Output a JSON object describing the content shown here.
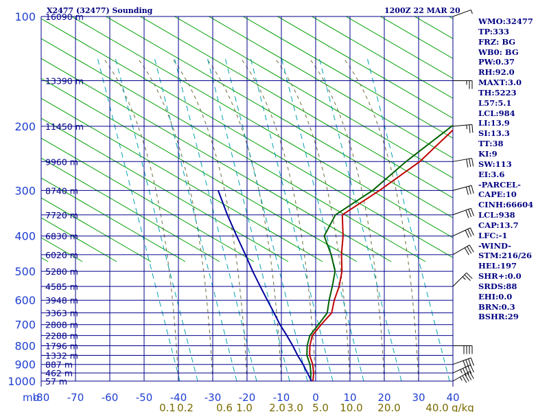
{
  "header": {
    "station": "X2477 (32477) Sounding",
    "datetime": "1200Z 22 MAR 20"
  },
  "indices": [
    "WMO:32477",
    "TP:333",
    "FRZ: BG",
    "WB0: BG",
    "PW:0.37",
    "RH:92.0",
    "MAXT:3.0",
    "TH:5223",
    "L57:5.1",
    "LCL:984",
    "LI:13.9",
    "SI:13.3",
    "TT:38",
    "KI:9",
    "SW:113",
    "EI:3.6",
    "-PARCEL-",
    "CAPE:10",
    "CINH:66604",
    "LCL:938",
    "CAP:13.7",
    "LFC:-1",
    "-WIND-",
    "STM:216/26",
    "HEL:197",
    "SHR+:0.0",
    "SRDS:88",
    "EHI:0.0",
    "BRN:0.3",
    "BSHR:29"
  ],
  "chart_data": {
    "type": "line",
    "chart_kind": "skew-T log-P sounding",
    "y_scale": "log",
    "xlim": [
      -80,
      40
    ],
    "ylim": [
      1000,
      100
    ],
    "x_unit_label": "mb",
    "x_tick_labels": [
      "-80",
      "-70",
      "-60",
      "-50",
      "-40",
      "-30",
      "-20",
      "-10",
      "0",
      "10",
      "20",
      "30",
      "40"
    ],
    "pressure_levels": [
      100,
      150,
      200,
      250,
      300,
      350,
      400,
      450,
      500,
      550,
      600,
      650,
      700,
      750,
      800,
      850,
      900,
      950,
      1000
    ],
    "pressure_tick_labels": [
      "100",
      "200",
      "300",
      "400",
      "500",
      "600",
      "700",
      "800",
      "900",
      "1000"
    ],
    "height_labels": [
      {
        "p": 100,
        "label": "16090 m"
      },
      {
        "p": 150,
        "label": "13390 m"
      },
      {
        "p": 200,
        "label": "11450 m"
      },
      {
        "p": 250,
        "label": "9960 m"
      },
      {
        "p": 300,
        "label": "8740 m"
      },
      {
        "p": 350,
        "label": "7720 m"
      },
      {
        "p": 400,
        "label": "6830 m"
      },
      {
        "p": 450,
        "label": "6020 m"
      },
      {
        "p": 500,
        "label": "5280 m"
      },
      {
        "p": 550,
        "label": "4585 m"
      },
      {
        "p": 600,
        "label": "3948 m"
      },
      {
        "p": 650,
        "label": "3363 m"
      },
      {
        "p": 700,
        "label": "2808 m"
      },
      {
        "p": 750,
        "label": "2288 m"
      },
      {
        "p": 800,
        "label": "1796 m"
      },
      {
        "p": 850,
        "label": "1332 m"
      },
      {
        "p": 900,
        "label": "887 m"
      },
      {
        "p": 950,
        "label": "462 m"
      },
      {
        "p": 1000,
        "label": "57 m"
      }
    ],
    "mixing_ratio_labels": [
      "0.1",
      "0.2",
      "0.6",
      "1.0",
      "2.0",
      "3.0",
      "5.0",
      "10.0",
      "20.0",
      "40.0"
    ],
    "mixing_ratio_unit": "g/kg",
    "series": [
      {
        "role": "temperature",
        "color": "#c00000",
        "points": [
          [
            1000,
            -0.8
          ],
          [
            950,
            -3.2
          ],
          [
            900,
            -6.2
          ],
          [
            850,
            -10
          ],
          [
            800,
            -13
          ],
          [
            750,
            -15.6
          ],
          [
            700,
            -16.5
          ],
          [
            650,
            -17.2
          ],
          [
            600,
            -20.5
          ],
          [
            550,
            -23.5
          ],
          [
            500,
            -27.5
          ],
          [
            450,
            -33
          ],
          [
            400,
            -38.5
          ],
          [
            350,
            -45.5
          ],
          [
            300,
            -42.5
          ],
          [
            250,
            -40
          ],
          [
            200,
            -40.5
          ],
          [
            150,
            -39
          ],
          [
            100,
            -41
          ]
        ]
      },
      {
        "role": "dewpoint",
        "color": "#006000",
        "points": [
          [
            1000,
            -1.5
          ],
          [
            950,
            -4
          ],
          [
            900,
            -7
          ],
          [
            850,
            -10.8
          ],
          [
            800,
            -13.8
          ],
          [
            750,
            -16.3
          ],
          [
            700,
            -17.3
          ],
          [
            650,
            -18.5
          ],
          [
            600,
            -22
          ],
          [
            550,
            -25.5
          ],
          [
            500,
            -29.5
          ],
          [
            450,
            -36
          ],
          [
            400,
            -44
          ],
          [
            350,
            -47.5
          ],
          [
            300,
            -44.5
          ],
          [
            250,
            -44
          ],
          [
            200,
            -42
          ],
          [
            150,
            -37.5
          ],
          [
            100,
            -42
          ]
        ]
      },
      {
        "role": "parcel path",
        "color": "#0000a0",
        "points": [
          [
            1000,
            -1.2
          ],
          [
            950,
            -5
          ],
          [
            900,
            -9
          ],
          [
            850,
            -13.5
          ],
          [
            800,
            -18
          ],
          [
            750,
            -23
          ],
          [
            700,
            -28.5
          ],
          [
            650,
            -34
          ],
          [
            600,
            -40
          ],
          [
            550,
            -46.5
          ],
          [
            500,
            -53.5
          ],
          [
            450,
            -61
          ],
          [
            400,
            -69.5
          ],
          [
            350,
            -79
          ],
          [
            300,
            -89.5
          ]
        ]
      }
    ],
    "wind_barbs": [
      {
        "p": 100,
        "dir": 250,
        "kt": 5
      },
      {
        "p": 150,
        "dir": 270,
        "kt": 25
      },
      {
        "p": 200,
        "dir": 265,
        "kt": 25
      },
      {
        "p": 250,
        "dir": 260,
        "kt": 30
      },
      {
        "p": 300,
        "dir": 255,
        "kt": 30
      },
      {
        "p": 350,
        "dir": 250,
        "kt": 30
      },
      {
        "p": 400,
        "dir": 245,
        "kt": 30
      },
      {
        "p": 450,
        "dir": 240,
        "kt": 30
      },
      {
        "p": 550,
        "dir": 225,
        "kt": 25
      },
      {
        "p": 800,
        "dir": 270,
        "kt": 40
      },
      {
        "p": 900,
        "dir": 250,
        "kt": 40
      },
      {
        "p": 950,
        "dir": 245,
        "kt": 45
      },
      {
        "p": 1000,
        "dir": 240,
        "kt": 45
      }
    ],
    "colors": {
      "isobar": "#00008b",
      "isotherm": "#00008b",
      "dry_adiabat": "#00a000",
      "moist_adiabat": "#6b6b3b",
      "mixing_ratio": "#00a0b0",
      "axis_text": "#1f3fd0",
      "mixing_text": "#7a6a00"
    }
  }
}
